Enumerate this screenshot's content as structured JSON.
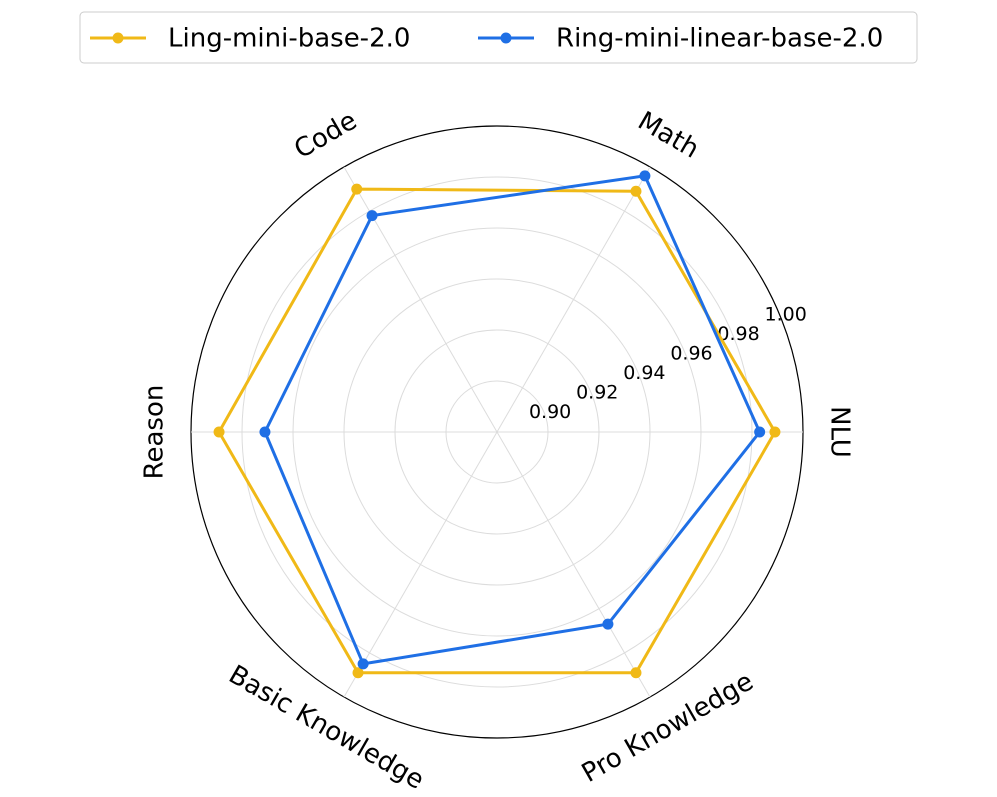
{
  "chart_data": {
    "type": "radar",
    "categories": [
      "NLU",
      "Math",
      "Code",
      "Reason",
      "Basic Knowledge",
      "Pro Knowledge"
    ],
    "series": [
      {
        "name": "Ling-mini-base-2.0",
        "color": "#f0b917",
        "values": [
          0.989,
          0.989,
          0.99,
          0.989,
          0.989,
          0.989
        ]
      },
      {
        "name": "Ring-mini-linear-base-2.0",
        "color": "#1f6fe5",
        "values": [
          0.983,
          0.996,
          0.978,
          0.971,
          0.985,
          0.967
        ]
      }
    ],
    "ylim": [
      0.88,
      1.0
    ],
    "yticks": [
      {
        "value": 0.9,
        "label": "0.90"
      },
      {
        "value": 0.92,
        "label": "0.92"
      },
      {
        "value": 0.94,
        "label": "0.94"
      },
      {
        "value": 0.96,
        "label": "0.96"
      },
      {
        "value": 0.98,
        "label": "0.98"
      },
      {
        "value": 1.0,
        "label": "1.00"
      }
    ],
    "grid": true,
    "legend": "upper center"
  }
}
